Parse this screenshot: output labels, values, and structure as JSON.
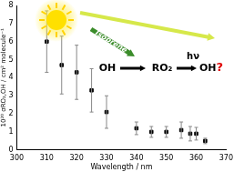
{
  "chart_data": {
    "type": "scatter",
    "x_label": "Wavelength / nm",
    "y_label": "10²⁰ σRO₂,OH / cm² molecule⁻¹",
    "x": [
      310,
      315,
      320,
      325,
      330,
      340,
      345,
      350,
      355,
      358,
      360,
      363
    ],
    "values": [
      6.0,
      4.7,
      4.3,
      3.3,
      2.1,
      1.2,
      1.0,
      1.0,
      1.1,
      0.9,
      0.9,
      0.5
    ],
    "errors": [
      1.7,
      1.6,
      1.5,
      1.2,
      0.9,
      0.35,
      0.3,
      0.3,
      0.45,
      0.4,
      0.35,
      0.15
    ],
    "color": "#000000",
    "marker": "square",
    "xlim": [
      300,
      370
    ],
    "xticks": [
      300,
      310,
      320,
      330,
      340,
      350,
      360,
      370
    ],
    "ylim": [
      0,
      8
    ],
    "yticks": [
      0,
      1,
      2,
      3,
      4,
      5,
      6,
      7,
      8
    ],
    "grid": false,
    "annotations": [
      "Isoprene",
      "OH",
      "RO₂",
      "hν",
      "OH?"
    ]
  }
}
